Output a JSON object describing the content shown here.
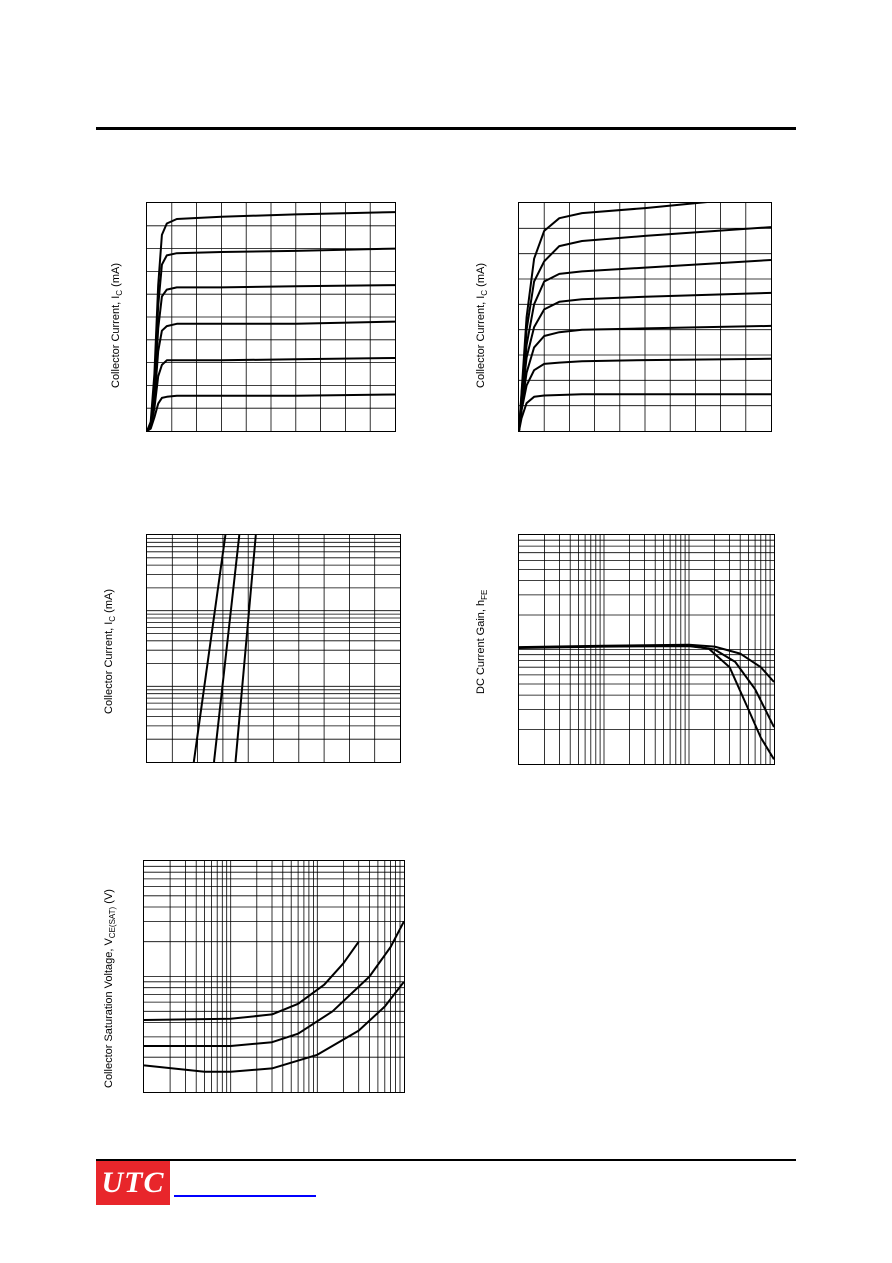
{
  "page": {
    "logo_text": "UTC",
    "brand_color": "#e8262b",
    "link_color": "#0000ff"
  },
  "chart_data": [
    {
      "id": "chart1",
      "type": "line",
      "ylabel": "Collector Current, I",
      "ylabel_sub": "C",
      "ylabel_unit": " (mA)",
      "xlabel": "",
      "x_scale": "linear",
      "y_scale": "linear",
      "xlim": [
        0,
        10
      ],
      "ylim": [
        0,
        10
      ],
      "grid_x": [
        1,
        2,
        3,
        4,
        5,
        6,
        7,
        8,
        9
      ],
      "grid_y": [
        1,
        2,
        3,
        4,
        5,
        6,
        7,
        8,
        9
      ],
      "series": [
        {
          "values": [
            [
              0,
              0
            ],
            [
              0.15,
              0.4
            ],
            [
              0.3,
              2.5
            ],
            [
              0.45,
              6.4
            ],
            [
              0.6,
              8.6
            ],
            [
              0.8,
              9.1
            ],
            [
              1.2,
              9.3
            ],
            [
              3,
              9.4
            ],
            [
              6,
              9.5
            ],
            [
              10,
              9.6
            ]
          ]
        },
        {
          "values": [
            [
              0,
              0
            ],
            [
              0.15,
              0.3
            ],
            [
              0.3,
              2.0
            ],
            [
              0.45,
              5.5
            ],
            [
              0.6,
              7.3
            ],
            [
              0.8,
              7.7
            ],
            [
              1.2,
              7.8
            ],
            [
              3,
              7.85
            ],
            [
              6,
              7.9
            ],
            [
              10,
              8.0
            ]
          ]
        },
        {
          "values": [
            [
              0,
              0
            ],
            [
              0.15,
              0.3
            ],
            [
              0.3,
              1.6
            ],
            [
              0.45,
              4.5
            ],
            [
              0.6,
              5.9
            ],
            [
              0.8,
              6.2
            ],
            [
              1.2,
              6.3
            ],
            [
              3,
              6.3
            ],
            [
              6,
              6.35
            ],
            [
              10,
              6.4
            ]
          ]
        },
        {
          "values": [
            [
              0,
              0
            ],
            [
              0.15,
              0.2
            ],
            [
              0.3,
              1.3
            ],
            [
              0.45,
              3.5
            ],
            [
              0.6,
              4.4
            ],
            [
              0.8,
              4.6
            ],
            [
              1.2,
              4.7
            ],
            [
              3,
              4.7
            ],
            [
              6,
              4.7
            ],
            [
              10,
              4.8
            ]
          ]
        },
        {
          "values": [
            [
              0,
              0
            ],
            [
              0.15,
              0.2
            ],
            [
              0.3,
              1.0
            ],
            [
              0.45,
              2.4
            ],
            [
              0.6,
              2.9
            ],
            [
              0.8,
              3.1
            ],
            [
              1.2,
              3.1
            ],
            [
              3,
              3.1
            ],
            [
              6,
              3.15
            ],
            [
              10,
              3.2
            ]
          ]
        },
        {
          "values": [
            [
              0,
              0
            ],
            [
              0.15,
              0.1
            ],
            [
              0.3,
              0.6
            ],
            [
              0.45,
              1.2
            ],
            [
              0.6,
              1.45
            ],
            [
              0.8,
              1.5
            ],
            [
              1.2,
              1.55
            ],
            [
              3,
              1.55
            ],
            [
              6,
              1.55
            ],
            [
              10,
              1.6
            ]
          ]
        }
      ]
    },
    {
      "id": "chart2",
      "type": "line",
      "ylabel": "Collector Current, I",
      "ylabel_sub": "C",
      "ylabel_unit": " (mA)",
      "xlabel": "",
      "x_scale": "linear",
      "y_scale": "linear",
      "xlim": [
        0,
        10
      ],
      "ylim": [
        0,
        9
      ],
      "grid_x": [
        1,
        2,
        3,
        4,
        5,
        6,
        7,
        8,
        9
      ],
      "grid_y": [
        1,
        2,
        3,
        4,
        5,
        6,
        7,
        8
      ],
      "series": [
        {
          "values": [
            [
              0,
              0
            ],
            [
              0.1,
              1.5
            ],
            [
              0.3,
              4.5
            ],
            [
              0.6,
              6.8
            ],
            [
              1,
              7.9
            ],
            [
              1.6,
              8.4
            ],
            [
              2.5,
              8.6
            ],
            [
              5,
              8.8
            ],
            [
              7.6,
              9.05
            ]
          ]
        },
        {
          "values": [
            [
              0,
              0
            ],
            [
              0.1,
              1.4
            ],
            [
              0.3,
              4.0
            ],
            [
              0.6,
              5.9
            ],
            [
              1,
              6.7
            ],
            [
              1.6,
              7.3
            ],
            [
              2.5,
              7.5
            ],
            [
              5,
              7.7
            ],
            [
              10,
              8.05
            ]
          ]
        },
        {
          "values": [
            [
              0,
              0
            ],
            [
              0.1,
              1.2
            ],
            [
              0.3,
              3.4
            ],
            [
              0.6,
              5.0
            ],
            [
              1,
              5.9
            ],
            [
              1.6,
              6.2
            ],
            [
              2.5,
              6.3
            ],
            [
              5,
              6.45
            ],
            [
              10,
              6.75
            ]
          ]
        },
        {
          "values": [
            [
              0,
              0
            ],
            [
              0.1,
              1.1
            ],
            [
              0.3,
              2.9
            ],
            [
              0.6,
              4.1
            ],
            [
              1,
              4.8
            ],
            [
              1.6,
              5.1
            ],
            [
              2.5,
              5.2
            ],
            [
              5,
              5.3
            ],
            [
              10,
              5.45
            ]
          ]
        },
        {
          "values": [
            [
              0,
              0
            ],
            [
              0.1,
              0.9
            ],
            [
              0.3,
              2.3
            ],
            [
              0.6,
              3.3
            ],
            [
              1,
              3.75
            ],
            [
              1.6,
              3.9
            ],
            [
              2.5,
              4.0
            ],
            [
              5,
              4.05
            ],
            [
              10,
              4.15
            ]
          ]
        },
        {
          "values": [
            [
              0,
              0
            ],
            [
              0.1,
              0.8
            ],
            [
              0.3,
              1.8
            ],
            [
              0.6,
              2.4
            ],
            [
              1,
              2.65
            ],
            [
              1.6,
              2.7
            ],
            [
              2.5,
              2.75
            ],
            [
              5,
              2.8
            ],
            [
              10,
              2.85
            ]
          ]
        },
        {
          "values": [
            [
              0,
              0
            ],
            [
              0.1,
              0.5
            ],
            [
              0.3,
              1.1
            ],
            [
              0.6,
              1.35
            ],
            [
              1,
              1.4
            ],
            [
              1.6,
              1.42
            ],
            [
              2.5,
              1.45
            ],
            [
              5,
              1.45
            ],
            [
              10,
              1.45
            ]
          ]
        }
      ]
    },
    {
      "id": "chart3",
      "type": "line",
      "ylabel": "Collector Current, I",
      "ylabel_sub": "C",
      "ylabel_unit": " (mA)",
      "xlabel": "",
      "x_scale": "linear",
      "y_scale": "log",
      "xlim": [
        0,
        10
      ],
      "ylim": [
        0.1,
        100
      ],
      "grid_x": [
        1,
        2,
        3,
        4,
        5,
        6,
        7,
        8,
        9
      ],
      "grid_y": [
        0.2,
        0.3,
        0.4,
        0.5,
        0.6,
        0.7,
        0.8,
        0.9,
        1,
        2,
        3,
        4,
        5,
        6,
        7,
        8,
        9,
        10,
        20,
        30,
        40,
        50,
        60,
        70,
        80,
        90
      ],
      "series": [
        {
          "values": [
            [
              1.85,
              0.1
            ],
            [
              3.1,
              100
            ]
          ]
        },
        {
          "values": [
            [
              2.65,
              0.1
            ],
            [
              3.65,
              100
            ]
          ]
        },
        {
          "values": [
            [
              3.5,
              0.1
            ],
            [
              4.3,
              100
            ]
          ]
        }
      ]
    },
    {
      "id": "chart4",
      "type": "line",
      "ylabel": "DC Current Gain, h",
      "ylabel_sub": "FE",
      "ylabel_unit": "",
      "xlabel": "",
      "x_scale": "log",
      "y_scale": "log",
      "xlim": [
        0.1,
        100
      ],
      "ylim": [
        10,
        1000
      ],
      "grid_x": [
        0.2,
        0.3,
        0.4,
        0.5,
        0.6,
        0.7,
        0.8,
        0.9,
        1,
        2,
        3,
        4,
        5,
        6,
        7,
        8,
        9,
        10,
        20,
        30,
        40,
        50,
        60,
        70,
        80,
        90
      ],
      "grid_y": [
        20,
        30,
        40,
        50,
        60,
        70,
        80,
        90,
        100,
        200,
        300,
        400,
        500,
        600,
        700,
        800,
        900
      ],
      "series": [
        {
          "values": [
            [
              0.1,
              105
            ],
            [
              1,
              108
            ],
            [
              10,
              110
            ],
            [
              20,
              106
            ],
            [
              40,
              92
            ],
            [
              70,
              70
            ],
            [
              100,
              52
            ]
          ]
        },
        {
          "values": [
            [
              0.1,
              104
            ],
            [
              1,
              107
            ],
            [
              10,
              108
            ],
            [
              20,
              100
            ],
            [
              35,
              78
            ],
            [
              60,
              45
            ],
            [
              100,
              21
            ]
          ]
        },
        {
          "values": [
            [
              0.1,
              103
            ],
            [
              1,
              106
            ],
            [
              10,
              107
            ],
            [
              17,
              102
            ],
            [
              30,
              70
            ],
            [
              50,
              30
            ],
            [
              70,
              17
            ],
            [
              100,
              11
            ]
          ]
        }
      ]
    },
    {
      "id": "chart5",
      "type": "line",
      "ylabel": "Collector Saturation Voltage, V",
      "ylabel_sub": "CE(SAT)",
      "ylabel_unit": " (V)",
      "xlabel": "",
      "x_scale": "log",
      "y_scale": "log",
      "xlim": [
        0.1,
        100
      ],
      "ylim": [
        0.01,
        1
      ],
      "grid_x": [
        0.2,
        0.3,
        0.4,
        0.5,
        0.6,
        0.7,
        0.8,
        0.9,
        1,
        2,
        3,
        4,
        5,
        6,
        7,
        8,
        9,
        10,
        20,
        30,
        40,
        50,
        60,
        70,
        80,
        90
      ],
      "grid_y": [
        0.02,
        0.03,
        0.04,
        0.05,
        0.06,
        0.07,
        0.08,
        0.09,
        0.1,
        0.2,
        0.3,
        0.4,
        0.5,
        0.6,
        0.7,
        0.8,
        0.9
      ],
      "series": [
        {
          "values": [
            [
              0.1,
              0.042
            ],
            [
              1,
              0.043
            ],
            [
              3,
              0.047
            ],
            [
              6,
              0.058
            ],
            [
              12,
              0.085
            ],
            [
              20,
              0.13
            ],
            [
              30,
              0.2
            ]
          ]
        },
        {
          "values": [
            [
              0.1,
              0.025
            ],
            [
              1,
              0.025
            ],
            [
              3,
              0.027
            ],
            [
              6,
              0.032
            ],
            [
              15,
              0.05
            ],
            [
              40,
              0.1
            ],
            [
              70,
              0.18
            ],
            [
              100,
              0.3
            ]
          ]
        },
        {
          "values": [
            [
              0.1,
              0.017
            ],
            [
              0.5,
              0.015
            ],
            [
              1,
              0.015
            ],
            [
              3,
              0.016
            ],
            [
              10,
              0.021
            ],
            [
              30,
              0.034
            ],
            [
              60,
              0.055
            ],
            [
              100,
              0.09
            ]
          ]
        }
      ]
    }
  ]
}
